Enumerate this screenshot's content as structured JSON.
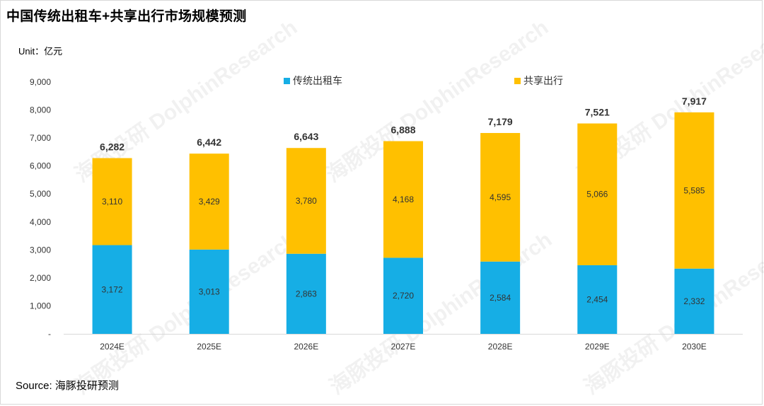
{
  "title": "中国传统出租车+共享出行市场规模预测",
  "unit_label": "Unit：亿元",
  "source_label": "Source: 海豚投研预测",
  "watermark": "海豚投研 DolphinResearch",
  "colors": {
    "traditional": "#16aee5",
    "shared": "#ffc000",
    "text": "#333333",
    "axis": "#d9d9d9"
  },
  "chart_data": {
    "type": "bar",
    "stacked": true,
    "categories": [
      "2024E",
      "2025E",
      "2026E",
      "2027E",
      "2028E",
      "2029E",
      "2030E"
    ],
    "series": [
      {
        "name": "传统出租车",
        "values": [
          3172,
          3013,
          2863,
          2720,
          2584,
          2454,
          2332
        ],
        "labels": [
          "3,172",
          "3,013",
          "2,863",
          "2,720",
          "2,584",
          "2,454",
          "2,332"
        ]
      },
      {
        "name": "共享出行",
        "values": [
          3110,
          3429,
          3780,
          4168,
          4595,
          5066,
          5585
        ],
        "labels": [
          "3,110",
          "3,429",
          "3,780",
          "4,168",
          "4,595",
          "5,066",
          "5,585"
        ]
      }
    ],
    "totals": [
      6282,
      6442,
      6643,
      6888,
      7179,
      7521,
      7917
    ],
    "total_labels": [
      "6,282",
      "6,442",
      "6,643",
      "6,888",
      "7,179",
      "7,521",
      "7,917"
    ],
    "ylim": [
      0,
      9000
    ],
    "yticks": [
      0,
      1000,
      2000,
      3000,
      4000,
      5000,
      6000,
      7000,
      8000,
      9000
    ],
    "ytick_labels": [
      "-",
      "1,000",
      "2,000",
      "3,000",
      "4,000",
      "5,000",
      "6,000",
      "7,000",
      "8,000",
      "9,000"
    ],
    "grid": false,
    "legend_position": "top"
  }
}
